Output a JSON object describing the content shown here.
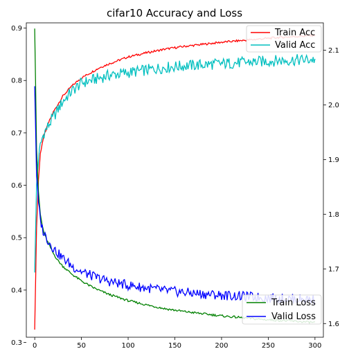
{
  "chart_data": {
    "type": "line",
    "title": "cifar10 Accuracy and Loss",
    "xlabel": "",
    "ylabel": "",
    "y2label": "",
    "grid": false,
    "xlim": [
      -9,
      309
    ],
    "ylim_left": [
      0.31,
      0.91
    ],
    "ylim_right": [
      1.575,
      2.15
    ],
    "x_ticks": [
      "0",
      "50",
      "100",
      "150",
      "200",
      "250",
      "300"
    ],
    "y_left_ticks": [
      "0.3",
      "0.4",
      "0.5",
      "0.6",
      "0.7",
      "0.8",
      "0.9"
    ],
    "y_right_ticks": [
      "1.6",
      "1.7",
      "1.8",
      "1.9",
      "2.0",
      "2.1"
    ],
    "legend_top": {
      "placement": "top-right",
      "entries": [
        "Train Acc",
        "Valid Acc"
      ]
    },
    "legend_bottom": {
      "placement": "bottom-right",
      "entries": [
        "Train Loss",
        "Valid Loss"
      ]
    },
    "series": [
      {
        "name": "Train Acc",
        "axis": "left",
        "color": "#ff0000",
        "x": [
          0,
          2,
          4,
          6,
          8,
          10,
          15,
          20,
          25,
          30,
          40,
          50,
          60,
          70,
          80,
          100,
          120,
          140,
          160,
          180,
          200,
          220,
          240,
          260,
          280,
          300
        ],
        "y": [
          0.325,
          0.52,
          0.61,
          0.66,
          0.68,
          0.695,
          0.72,
          0.74,
          0.755,
          0.77,
          0.79,
          0.805,
          0.815,
          0.825,
          0.832,
          0.845,
          0.853,
          0.86,
          0.865,
          0.869,
          0.873,
          0.876,
          0.879,
          0.882,
          0.884,
          0.886
        ]
      },
      {
        "name": "Valid Acc",
        "axis": "left",
        "color": "#00bfbf",
        "x": [
          0,
          2,
          4,
          6,
          8,
          10,
          15,
          20,
          25,
          30,
          40,
          50,
          60,
          70,
          80,
          100,
          120,
          140,
          160,
          180,
          200,
          220,
          240,
          260,
          280,
          300
        ],
        "y": [
          0.435,
          0.6,
          0.65,
          0.675,
          0.69,
          0.7,
          0.715,
          0.73,
          0.745,
          0.76,
          0.78,
          0.795,
          0.8,
          0.805,
          0.81,
          0.815,
          0.82,
          0.825,
          0.828,
          0.83,
          0.832,
          0.834,
          0.836,
          0.838,
          0.839,
          0.84
        ]
      },
      {
        "name": "Train Loss",
        "axis": "right",
        "color": "#008000",
        "x": [
          0,
          2,
          4,
          6,
          8,
          10,
          15,
          20,
          25,
          30,
          40,
          50,
          60,
          70,
          80,
          100,
          120,
          140,
          160,
          180,
          200,
          220,
          240,
          260,
          280,
          300
        ],
        "y": [
          2.14,
          1.92,
          1.84,
          1.8,
          1.78,
          1.765,
          1.745,
          1.728,
          1.715,
          1.705,
          1.69,
          1.678,
          1.668,
          1.66,
          1.653,
          1.642,
          1.634,
          1.627,
          1.622,
          1.618,
          1.614,
          1.611,
          1.608,
          1.606,
          1.604,
          1.602
        ]
      },
      {
        "name": "Valid Loss",
        "axis": "right",
        "color": "#0000ff",
        "x": [
          0,
          2,
          4,
          6,
          8,
          10,
          15,
          20,
          25,
          30,
          40,
          50,
          60,
          70,
          80,
          100,
          120,
          140,
          160,
          180,
          200,
          220,
          240,
          260,
          280,
          300
        ],
        "y": [
          2.035,
          1.87,
          1.82,
          1.79,
          1.775,
          1.765,
          1.75,
          1.738,
          1.728,
          1.72,
          1.705,
          1.695,
          1.688,
          1.682,
          1.677,
          1.67,
          1.665,
          1.66,
          1.657,
          1.654,
          1.652,
          1.65,
          1.648,
          1.646,
          1.645,
          1.644
        ]
      }
    ]
  }
}
